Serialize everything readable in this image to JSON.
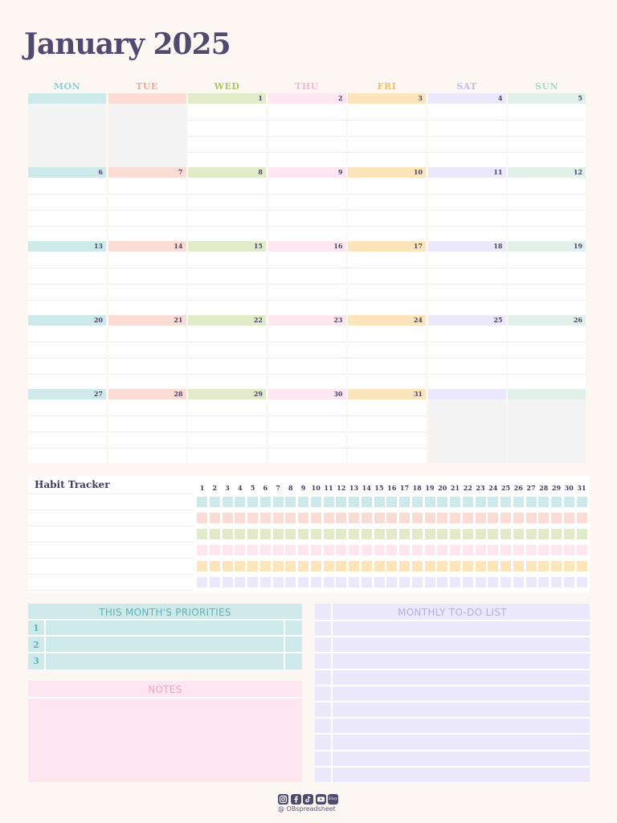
{
  "title": "January 2025",
  "weekdays": [
    {
      "label": "MON",
      "color": "#8fcfd3",
      "bar": "#cde9ea"
    },
    {
      "label": "TUE",
      "color": "#f0a79a",
      "bar": "#fbdcd5"
    },
    {
      "label": "WED",
      "color": "#a9c762",
      "bar": "#e1ebc9"
    },
    {
      "label": "THU",
      "color": "#f6b8cf",
      "bar": "#fde6ef"
    },
    {
      "label": "FRI",
      "color": "#f1bf5c",
      "bar": "#fde5bb"
    },
    {
      "label": "SAT",
      "color": "#bfbbee",
      "bar": "#ebe8fc"
    },
    {
      "label": "SUN",
      "color": "#a8d9c4",
      "bar": "#e1f1ea"
    }
  ],
  "weeks": [
    [
      "",
      "",
      "1",
      "2",
      "3",
      "4",
      "5"
    ],
    [
      "6",
      "7",
      "8",
      "9",
      "10",
      "11",
      "12"
    ],
    [
      "13",
      "14",
      "15",
      "16",
      "17",
      "18",
      "19"
    ],
    [
      "20",
      "21",
      "22",
      "23",
      "24",
      "25",
      "26"
    ],
    [
      "27",
      "28",
      "29",
      "30",
      "31",
      "",
      ""
    ]
  ],
  "habit_tracker": {
    "title": "Habit Tracker",
    "days": [
      "1",
      "2",
      "3",
      "4",
      "5",
      "6",
      "7",
      "8",
      "9",
      "10",
      "11",
      "12",
      "13",
      "14",
      "15",
      "16",
      "17",
      "18",
      "19",
      "20",
      "21",
      "22",
      "23",
      "24",
      "25",
      "26",
      "27",
      "28",
      "29",
      "30",
      "31"
    ],
    "row_colors": [
      "#cde9ea",
      "#fbdcd5",
      "#e1ebc9",
      "#fde6ef",
      "#fde5bb",
      "#ebe8fc"
    ]
  },
  "priorities": {
    "title": "THIS MONTH'S PRIORITIES",
    "title_color": "#5fb4b9",
    "numbers": [
      "1",
      "2",
      "3"
    ]
  },
  "notes": {
    "title": "NOTES",
    "title_color": "#f5a3bf"
  },
  "todo": {
    "title": "MONTHLY TO-DO LIST",
    "title_color": "#b3aee6"
  },
  "footer": {
    "icons": [
      "instagram-icon",
      "facebook-icon",
      "tiktok-icon",
      "youtube-icon",
      "etsy-icon"
    ],
    "etsy_label": "Etsy",
    "handle": "@ OBspreadsheet"
  }
}
